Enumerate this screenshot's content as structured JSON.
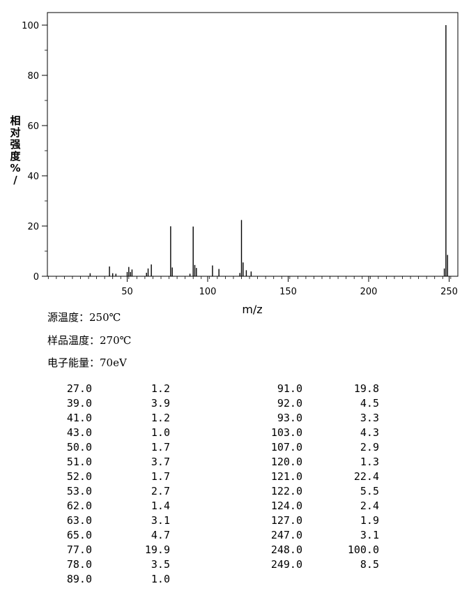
{
  "chart_data": {
    "type": "bar",
    "xlabel": "m/z",
    "ylabel": "相对强度%/",
    "xlim": [
      0,
      255
    ],
    "ylim": [
      0,
      100
    ],
    "x_ticks": [
      50,
      100,
      150,
      200,
      250
    ],
    "y_ticks": [
      0,
      20,
      40,
      60,
      80,
      100
    ],
    "grid": false,
    "peaks": [
      {
        "mz": 27.0,
        "intensity": 1.2
      },
      {
        "mz": 39.0,
        "intensity": 3.9
      },
      {
        "mz": 41.0,
        "intensity": 1.2
      },
      {
        "mz": 43.0,
        "intensity": 1.0
      },
      {
        "mz": 50.0,
        "intensity": 1.7
      },
      {
        "mz": 51.0,
        "intensity": 3.7
      },
      {
        "mz": 52.0,
        "intensity": 1.7
      },
      {
        "mz": 53.0,
        "intensity": 2.7
      },
      {
        "mz": 62.0,
        "intensity": 1.4
      },
      {
        "mz": 63.0,
        "intensity": 3.1
      },
      {
        "mz": 65.0,
        "intensity": 4.7
      },
      {
        "mz": 77.0,
        "intensity": 19.9
      },
      {
        "mz": 78.0,
        "intensity": 3.5
      },
      {
        "mz": 89.0,
        "intensity": 1.0
      },
      {
        "mz": 91.0,
        "intensity": 19.8
      },
      {
        "mz": 92.0,
        "intensity": 4.5
      },
      {
        "mz": 93.0,
        "intensity": 3.3
      },
      {
        "mz": 103.0,
        "intensity": 4.3
      },
      {
        "mz": 107.0,
        "intensity": 2.9
      },
      {
        "mz": 120.0,
        "intensity": 1.3
      },
      {
        "mz": 121.0,
        "intensity": 22.4
      },
      {
        "mz": 122.0,
        "intensity": 5.5
      },
      {
        "mz": 124.0,
        "intensity": 2.4
      },
      {
        "mz": 127.0,
        "intensity": 1.9
      },
      {
        "mz": 247.0,
        "intensity": 3.1
      },
      {
        "mz": 248.0,
        "intensity": 100.0
      },
      {
        "mz": 249.0,
        "intensity": 8.5
      }
    ]
  },
  "conditions": {
    "source_temp": "源温度：250℃",
    "sample_temp": "样品温度：270℃",
    "electron_energy": "电子能量：70eV"
  },
  "table": {
    "left": [
      [
        "27.0",
        "1.2"
      ],
      [
        "39.0",
        "3.9"
      ],
      [
        "41.0",
        "1.2"
      ],
      [
        "43.0",
        "1.0"
      ],
      [
        "50.0",
        "1.7"
      ],
      [
        "51.0",
        "3.7"
      ],
      [
        "52.0",
        "1.7"
      ],
      [
        "53.0",
        "2.7"
      ],
      [
        "62.0",
        "1.4"
      ],
      [
        "63.0",
        "3.1"
      ],
      [
        "65.0",
        "4.7"
      ],
      [
        "77.0",
        "19.9"
      ],
      [
        "78.0",
        "3.5"
      ],
      [
        "89.0",
        "1.0"
      ]
    ],
    "right": [
      [
        "91.0",
        "19.8"
      ],
      [
        "92.0",
        "4.5"
      ],
      [
        "93.0",
        "3.3"
      ],
      [
        "103.0",
        "4.3"
      ],
      [
        "107.0",
        "2.9"
      ],
      [
        "120.0",
        "1.3"
      ],
      [
        "121.0",
        "22.4"
      ],
      [
        "122.0",
        "5.5"
      ],
      [
        "124.0",
        "2.4"
      ],
      [
        "127.0",
        "1.9"
      ],
      [
        "247.0",
        "3.1"
      ],
      [
        "248.0",
        "100.0"
      ],
      [
        "249.0",
        "8.5"
      ]
    ]
  }
}
